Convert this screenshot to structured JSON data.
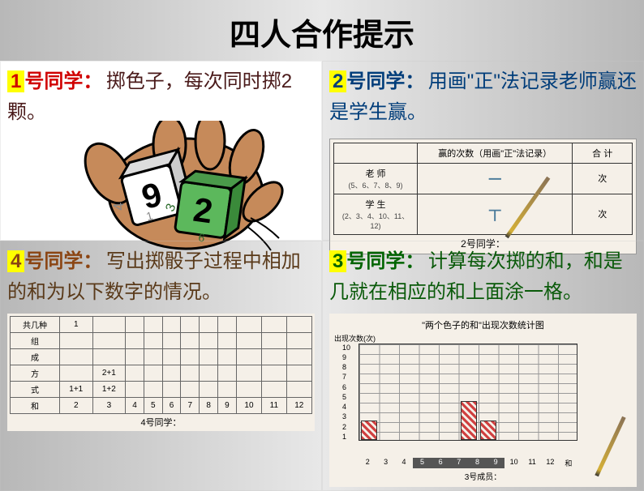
{
  "title": "四人合作提示",
  "q1": {
    "num": "1",
    "role": "号同学：",
    "desc": "掷色子，每次同时掷2颗。",
    "dice1_value": "9",
    "dice2_value": "2",
    "dice1_side": "4",
    "dice2_side1": "3",
    "dice2_side2": "6",
    "dice_small": "1"
  },
  "q2": {
    "num": "2",
    "role": "号同学：",
    "desc": "用画\"正\"法记录老师赢还是学生赢。",
    "header1": "赢的次数（用画\"正\"法记录）",
    "header2": "合 计",
    "row1_label": "老 师",
    "row1_sub": "(5、6、7、8、9)",
    "row1_tally": "一",
    "row1_total": "次",
    "row2_label": "学 生",
    "row2_sub": "(2、3、4、10、11、12)",
    "row2_tally": "丅",
    "row2_total": "次",
    "footer": "2号同学："
  },
  "q4": {
    "num": "4",
    "role": "号同学：",
    "desc": "写出掷骰子过程中相加的和为以下数字的情况。",
    "col_header": "共几种",
    "row_labels": [
      "组",
      "成",
      "方",
      "式"
    ],
    "sum_label": "和",
    "col1_val": "1",
    "cell_21": "2+1",
    "cell_11": "1+1",
    "cell_12": "1+2",
    "sums": [
      "2",
      "3",
      "4",
      "5",
      "6",
      "7",
      "8",
      "9",
      "10",
      "11",
      "12"
    ],
    "footer": "4号同学："
  },
  "q3": {
    "num": "3",
    "role": "号同学：",
    "desc": "计算每次掷的和，和是几就在相应的和上面涂一格。",
    "chart_title": "\"两个色子的和\"出现次数统计图",
    "ylabel": "出现次数(次)",
    "xlabel": "和",
    "yticks": [
      "10",
      "9",
      "8",
      "7",
      "6",
      "5",
      "4",
      "3",
      "2",
      "1"
    ],
    "xticks": [
      "2",
      "3",
      "4",
      "5",
      "6",
      "7",
      "8",
      "9",
      "10",
      "11",
      "12"
    ],
    "bars": [
      {
        "x": 2,
        "h": 2,
        "color": "#d04040"
      },
      {
        "x": 7,
        "h": 4,
        "color": "#d04040"
      },
      {
        "x": 8,
        "h": 2,
        "color": "#d04040"
      }
    ],
    "teacher_range": [
      5,
      9
    ],
    "footer": "3号成员："
  },
  "colors": {
    "bg_gradient": [
      "#b8b8b8",
      "#e8e8e8",
      "#b8b8b8"
    ],
    "q1_bg": "#ffffff",
    "highlight": "#ffff00",
    "red": "#d00000",
    "blue": "#003d7a",
    "brown": "#8b4513",
    "green": "#006400"
  }
}
